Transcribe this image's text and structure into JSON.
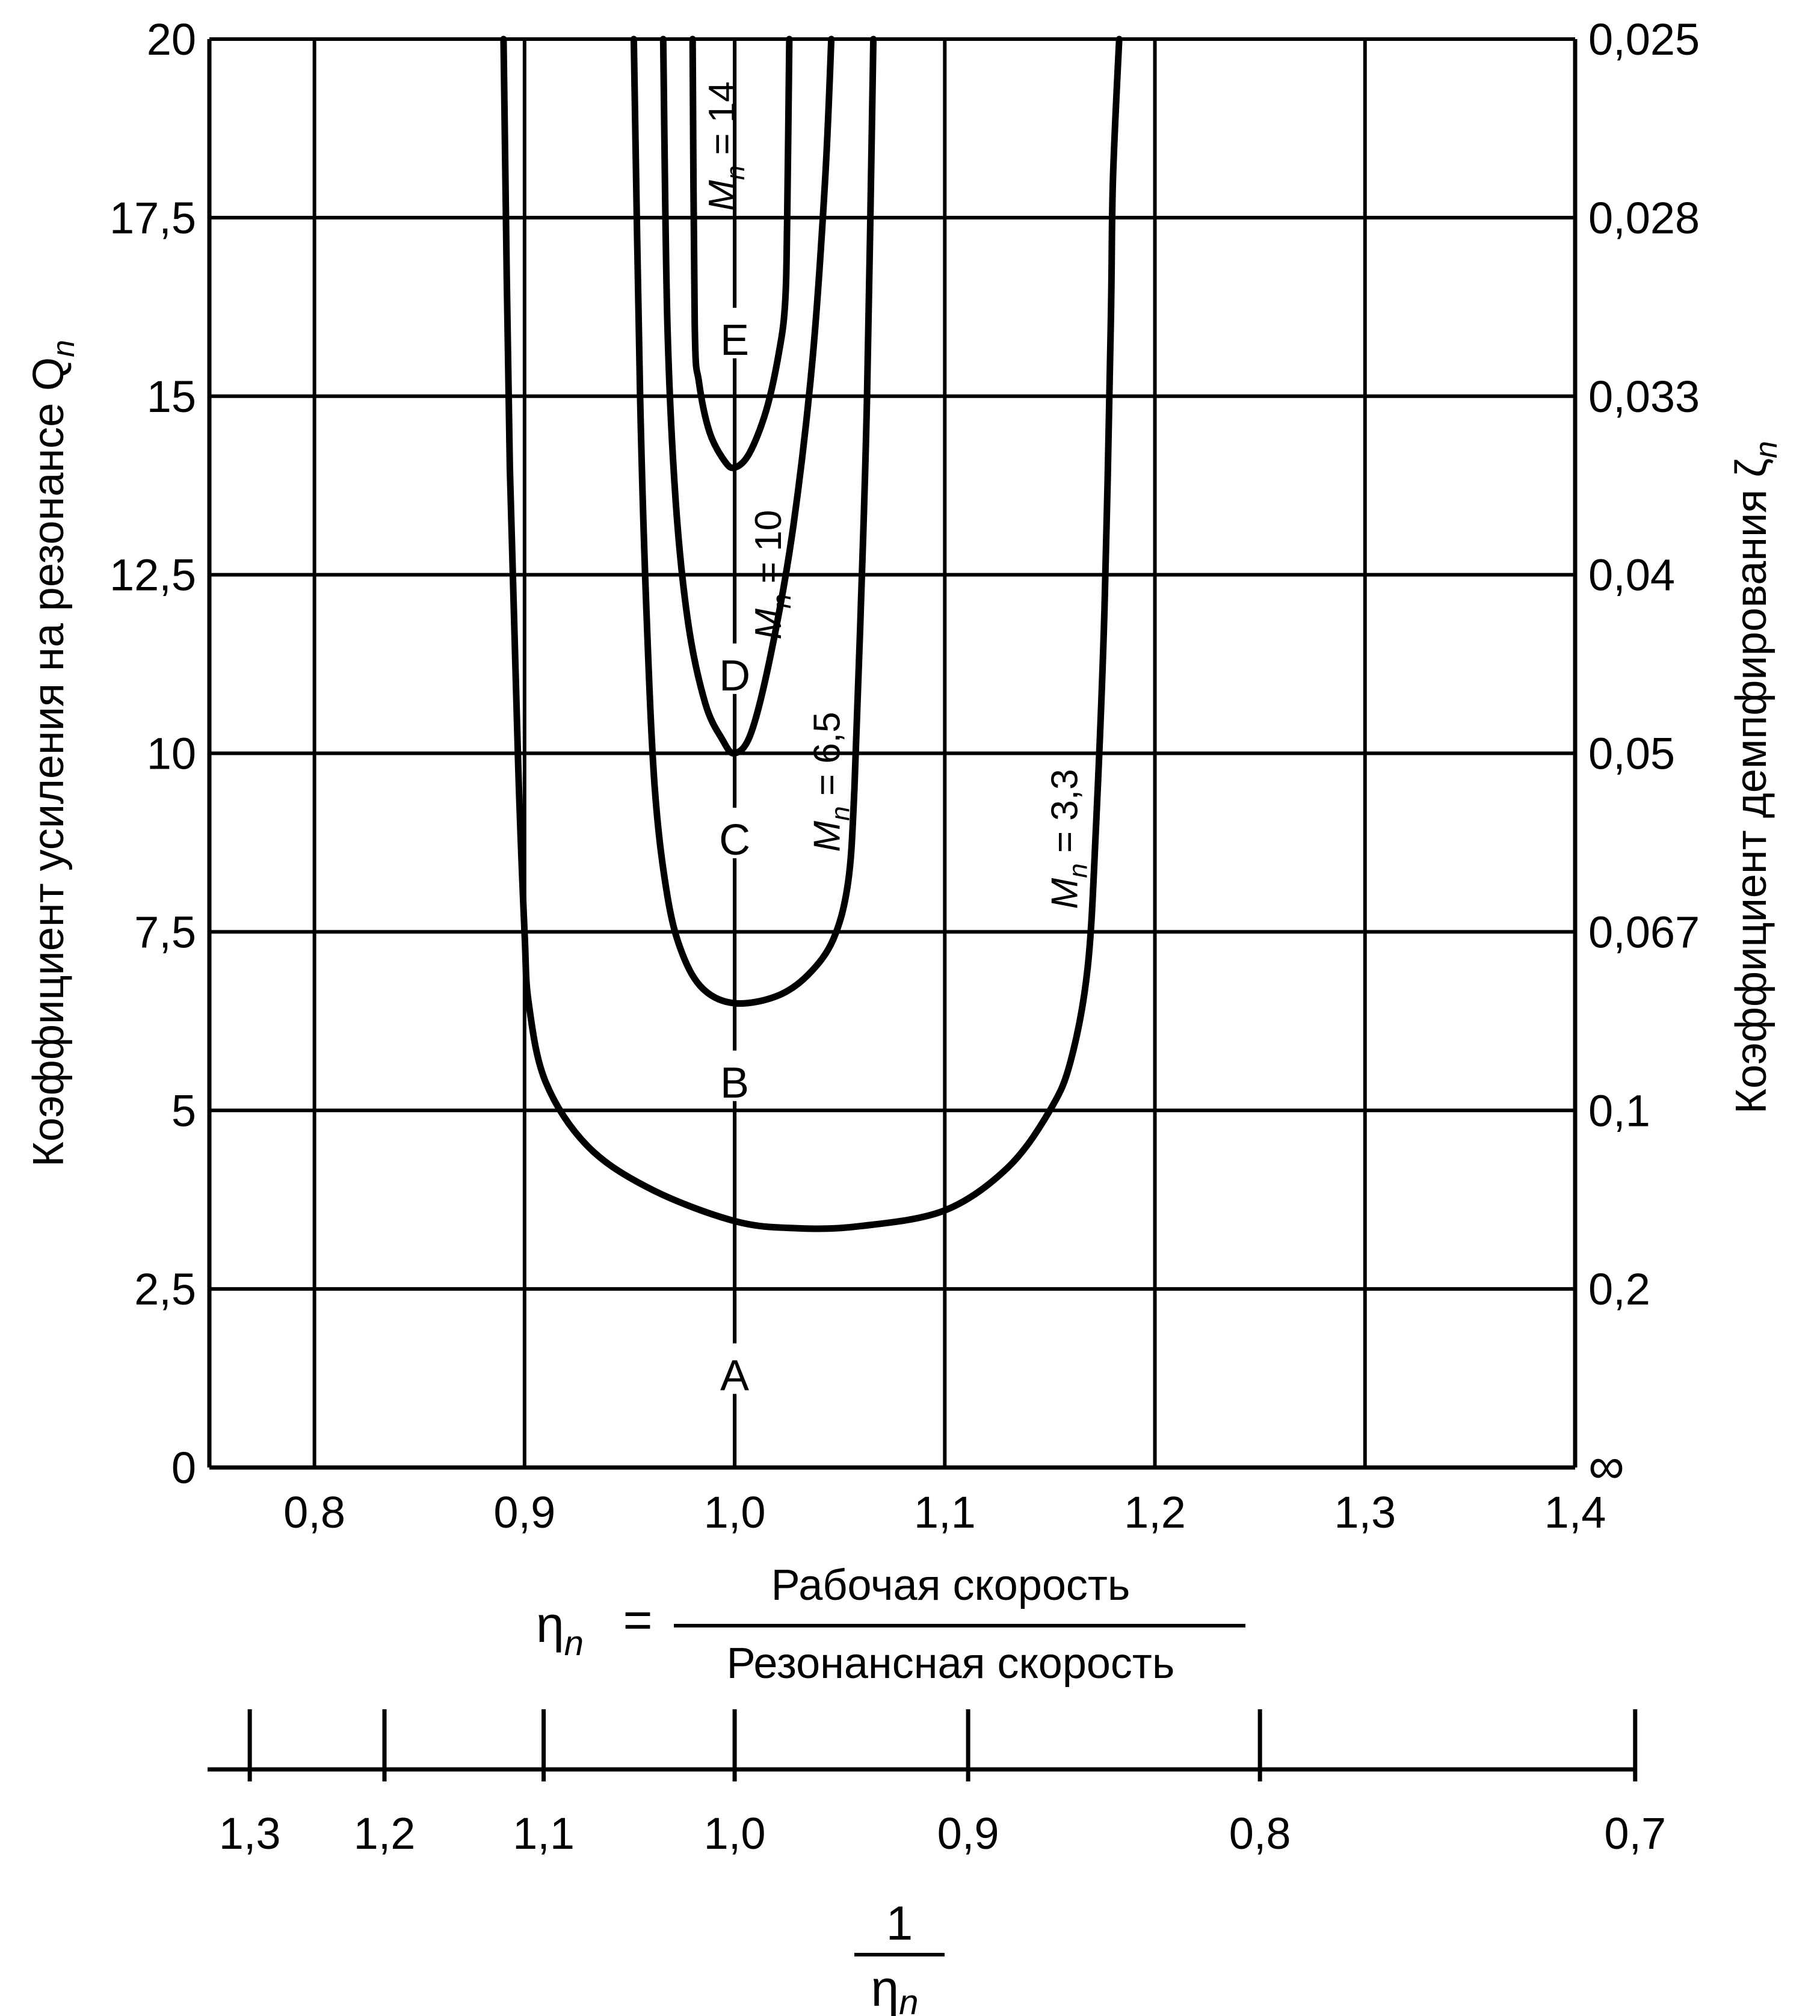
{
  "chart_data": {
    "type": "line",
    "xlim": [
      0.75,
      1.4
    ],
    "ylim": [
      0,
      20
    ],
    "x_ticks": [
      "0,8",
      "0,9",
      "1,0",
      "1,1",
      "1,2",
      "1,3",
      "1,4"
    ],
    "x_tick_values": [
      0.8,
      0.9,
      1.0,
      1.1,
      1.2,
      1.3,
      1.4
    ],
    "y_ticks": [
      "0",
      "2,5",
      "5",
      "7,5",
      "10",
      "12,5",
      "15",
      "17,5",
      "20"
    ],
    "y_tick_values": [
      0,
      2.5,
      5,
      7.5,
      10,
      12.5,
      15,
      17.5,
      20
    ],
    "y2_ticks": [
      "∞",
      "0,2",
      "0,1",
      "0,067",
      "0,05",
      "0,04",
      "0,033",
      "0,028",
      "0,025"
    ],
    "y_label": "Коэффициент усиления на резонансе Q",
    "y_label_sub": "n",
    "y2_label": "Коэффициент демпфирования ζ",
    "y2_label_sub": "n",
    "x_label_lhs": "η",
    "x_label_lhs_sub": "n",
    "x_label_eq": "=",
    "x_label_num": "Рабочая скорость",
    "x_label_den": "Резонансная скорость",
    "x2_ticks": [
      "1,3",
      "1,2",
      "1,1",
      "1,0",
      "0,9",
      "0,8",
      "0,7"
    ],
    "x2_tick_values": [
      1.3,
      1.2,
      1.1,
      1.0,
      0.9,
      0.8,
      0.7
    ],
    "x2_label_num": "1",
    "x2_label_den": "η",
    "x2_label_den_sub": "n",
    "grid": true,
    "zone_line_x": 1.0,
    "zones": [
      {
        "label": "A",
        "y": 1.3
      },
      {
        "label": "B",
        "y": 5.4
      },
      {
        "label": "C",
        "y": 8.8
      },
      {
        "label": "D",
        "y": 11.1
      },
      {
        "label": "E",
        "y": 15.8
      }
    ],
    "series": [
      {
        "name": "M = 3,3",
        "label_main": "M",
        "label_sub": "n",
        "label_val": " = 3,3",
        "label_x": 1.163,
        "label_y": 8.8,
        "x": [
          0.89,
          0.893,
          0.897,
          0.9,
          0.902,
          0.91,
          0.93,
          0.96,
          1.0,
          1.03,
          1.06,
          1.1,
          1.13,
          1.15,
          1.16,
          1.168,
          1.172,
          1.176,
          1.179,
          1.18,
          1.183
        ],
        "y": [
          20,
          14,
          9.8,
          7.5,
          6.5,
          5.4,
          4.5,
          3.9,
          3.45,
          3.35,
          3.38,
          3.6,
          4.2,
          5.0,
          5.7,
          7.0,
          9.0,
          12,
          16,
          18,
          20
        ]
      },
      {
        "name": "M = 6,5",
        "label_main": "M",
        "label_sub": "n",
        "label_val": " = 6,5",
        "label_x": 1.05,
        "label_y": 9.6,
        "x": [
          0.952,
          0.955,
          0.958,
          0.962,
          0.968,
          0.975,
          0.985,
          1.0,
          1.02,
          1.035,
          1.047,
          1.054,
          1.057,
          1.06,
          1.063,
          1.066
        ],
        "y": [
          20,
          15,
          12,
          9.5,
          8.0,
          7.2,
          6.7,
          6.5,
          6.6,
          6.9,
          7.4,
          8.2,
          9.5,
          12,
          15,
          20
        ]
      },
      {
        "name": "M = 10",
        "label_main": "M",
        "label_sub": "n",
        "label_val": " = 10",
        "label_x": 1.022,
        "label_y": 12.5,
        "x": [
          0.966,
          0.968,
          0.972,
          0.978,
          0.986,
          0.994,
          1.0,
          1.008,
          1.018,
          1.028,
          1.037,
          1.043,
          1.046
        ],
        "y": [
          20,
          16,
          13.5,
          11.8,
          10.7,
          10.2,
          10.0,
          10.3,
          11.5,
          13.2,
          15.5,
          18,
          20
        ]
      },
      {
        "name": "M = 14",
        "label_main": "M",
        "label_sub": "n",
        "label_val": " = 14",
        "label_x": 1.0,
        "label_y": 18.5,
        "x": [
          0.98,
          0.981,
          0.983,
          0.988,
          0.995,
          1.0,
          1.007,
          1.015,
          1.021,
          1.024,
          1.025,
          1.026
        ],
        "y": [
          20,
          16,
          15.2,
          14.5,
          14.1,
          14.0,
          14.2,
          14.8,
          15.6,
          16.3,
          17.5,
          20
        ]
      }
    ]
  }
}
